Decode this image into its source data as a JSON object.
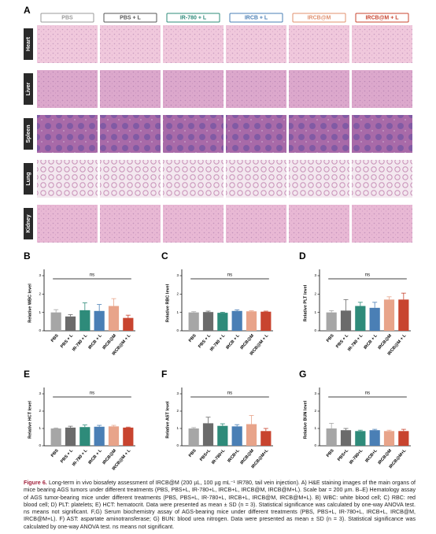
{
  "panel_a": {
    "label": "A",
    "columns": [
      "PBS",
      "PBS + L",
      "IR-780 + L",
      "IRCB + L",
      "IRCB@M",
      "IRCB@M + L"
    ],
    "column_colors": [
      "#9a9a9a",
      "#555555",
      "#2e8b7a",
      "#4a7fb5",
      "#e0906e",
      "#c8442f"
    ],
    "rows": [
      "Heart",
      "Liver",
      "Spleen",
      "Lung",
      "Kidney"
    ]
  },
  "chart_data": [
    {
      "type": "bar",
      "panel": "B",
      "ylabel": "Relative WBC level",
      "annotation": "ns",
      "categories": [
        "PBS",
        "PBS + L",
        "IR-780 + L",
        "IRCB + L",
        "IRCB@M",
        "IRCB@M + L"
      ],
      "values": [
        1.0,
        0.78,
        1.12,
        1.08,
        1.35,
        0.7
      ],
      "errors": [
        0.15,
        0.1,
        0.4,
        0.35,
        0.4,
        0.15
      ],
      "colors": [
        "#a6a6a6",
        "#6b6b6b",
        "#2e8b7a",
        "#4a7fb5",
        "#e8a48a",
        "#c8442f"
      ],
      "ylim": [
        0,
        3
      ],
      "yticks": [
        0,
        1,
        2,
        3
      ]
    },
    {
      "type": "bar",
      "panel": "C",
      "ylabel": "Relative RBC level",
      "annotation": "ns",
      "categories": [
        "PBS",
        "PBS + L",
        "IR-780 + L",
        "IRCB + L",
        "IRCB@M",
        "IRCB@M + L"
      ],
      "values": [
        1.0,
        1.02,
        0.98,
        1.08,
        1.06,
        1.04
      ],
      "errors": [
        0.04,
        0.05,
        0.03,
        0.06,
        0.03,
        0.03
      ],
      "colors": [
        "#a6a6a6",
        "#6b6b6b",
        "#2e8b7a",
        "#4a7fb5",
        "#e8a48a",
        "#c8442f"
      ],
      "ylim": [
        0,
        3
      ],
      "yticks": [
        0,
        1,
        2,
        3
      ]
    },
    {
      "type": "bar",
      "panel": "D",
      "ylabel": "Relative PLT level",
      "annotation": "ns",
      "categories": [
        "PBS",
        "PBS + L",
        "IR-780 + L",
        "IRCB + L",
        "IRCB@M",
        "IRCB@M + L"
      ],
      "values": [
        1.0,
        1.1,
        1.35,
        1.25,
        1.7,
        1.7
      ],
      "errors": [
        0.1,
        0.6,
        0.2,
        0.3,
        0.15,
        0.35
      ],
      "colors": [
        "#a6a6a6",
        "#6b6b6b",
        "#2e8b7a",
        "#4a7fb5",
        "#e8a48a",
        "#c8442f"
      ],
      "ylim": [
        0,
        3
      ],
      "yticks": [
        0,
        1,
        2,
        3
      ]
    },
    {
      "type": "bar",
      "panel": "E",
      "ylabel": "Relative HCT level",
      "annotation": "ns",
      "categories": [
        "PBS",
        "PBS + L",
        "IR-780 + L",
        "IRCB + L",
        "IRCB@M",
        "IRCB@M + L"
      ],
      "values": [
        1.0,
        1.05,
        1.08,
        1.1,
        1.12,
        1.05
      ],
      "errors": [
        0.03,
        0.08,
        0.12,
        0.08,
        0.06,
        0.03
      ],
      "colors": [
        "#a6a6a6",
        "#6b6b6b",
        "#2e8b7a",
        "#4a7fb5",
        "#e8a48a",
        "#c8442f"
      ],
      "ylim": [
        0,
        3
      ],
      "yticks": [
        0,
        1,
        2,
        3
      ]
    },
    {
      "type": "bar",
      "panel": "F",
      "ylabel": "Relative AST level",
      "annotation": "ns",
      "categories": [
        "PBS",
        "PBS+L",
        "IR-780+L",
        "IRCB+L",
        "IRCB@M",
        "IRCB@M+L"
      ],
      "values": [
        1.0,
        1.3,
        1.15,
        1.12,
        1.25,
        0.85
      ],
      "errors": [
        0.05,
        0.35,
        0.12,
        0.1,
        0.5,
        0.15
      ],
      "colors": [
        "#a6a6a6",
        "#6b6b6b",
        "#2e8b7a",
        "#4a7fb5",
        "#e8a48a",
        "#c8442f"
      ],
      "ylim": [
        0,
        3
      ],
      "yticks": [
        0,
        1,
        2,
        3
      ]
    },
    {
      "type": "bar",
      "panel": "G",
      "ylabel": "Relative BUN level",
      "annotation": "ns",
      "categories": [
        "PBS",
        "PBS+L",
        "IR-780+L",
        "IRCB+L",
        "IRCB@M",
        "IRCB@M+L"
      ],
      "values": [
        1.0,
        0.9,
        0.85,
        0.9,
        0.85,
        0.85
      ],
      "errors": [
        0.3,
        0.1,
        0.05,
        0.05,
        0.05,
        0.1
      ],
      "colors": [
        "#a6a6a6",
        "#6b6b6b",
        "#2e8b7a",
        "#4a7fb5",
        "#e8a48a",
        "#c8442f"
      ],
      "ylim": [
        0,
        3
      ],
      "yticks": [
        0,
        1,
        2,
        3
      ]
    }
  ],
  "caption": {
    "label": "Figure 6.",
    "text": "Long-term in vivo biosafety assessment of IRCB@M (200 µL, 100 µg mL⁻¹ IR780, tail vein injection). A) H&E staining images of the main organs of mice bearing AGS tumors under different treatments (PBS, PBS+L, IR-780+L, IRCB+L, IRCB@M, IRCB@M+L). Scale bar = 200 µm. B–E) Hematology assay of AGS tumor-bearing mice under different treatments (PBS, PBS+L, IR-780+L, IRCB+L, IRCB@M, IRCB@M+L). B) WBC: white blood cell; C) RBC: red blood cell; D) PLT: platelets; E) HCT: hematocrit. Data were presented as mean ± SD (n = 3). Statistical significance was calculated by one-way ANOVA test. ns means not significant. F,G) Serum biochemistry assay of AGS-bearing mice under different treatments (PBS, PBS+L, IR-780+L, IRCB+L, IRCB@M, IRCB@M+L). F) AST: aspartate aminotransferase; G) BUN: blood urea nitrogen. Data were presented as mean ± SD (n = 3). Statistical significance was calculated by one-way ANOVA test. ns means not significant."
  }
}
